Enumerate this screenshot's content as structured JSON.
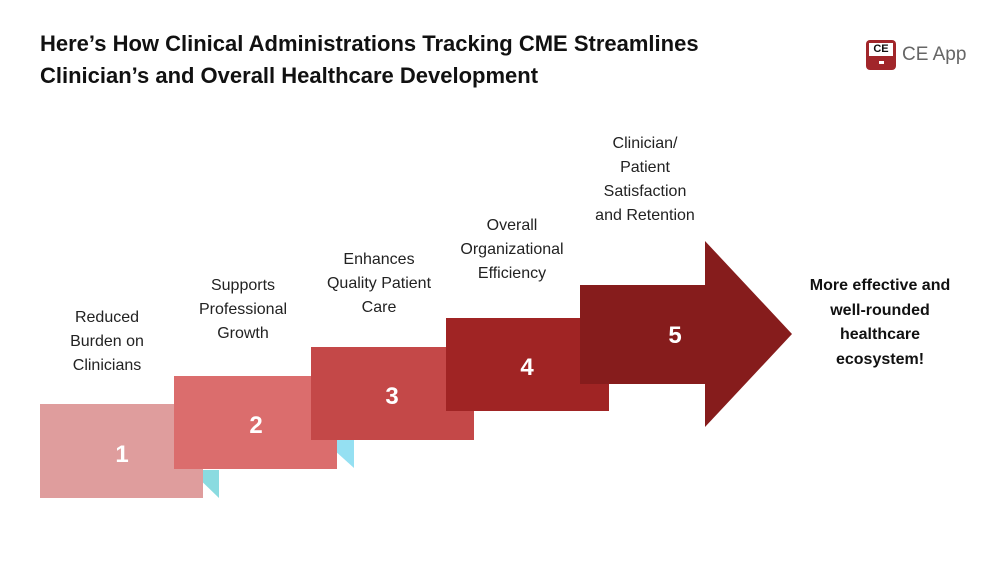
{
  "title": "Here’s How Clinical Administrations Tracking CME Streamlines Clinician’s and Overall Healthcare Development",
  "logo": {
    "badge": "CE",
    "name": "CE App"
  },
  "steps": [
    {
      "number": "1",
      "label": "Reduced Burden on Clinicians",
      "color": "#df9d9d"
    },
    {
      "number": "2",
      "label": "Supports Professional Growth",
      "color": "#db6d6d"
    },
    {
      "number": "3",
      "label": "Enhances Quality Patient Care",
      "color": "#c44848"
    },
    {
      "number": "4",
      "label": "Overall Organizational Efficiency",
      "color": "#a02424"
    },
    {
      "number": "5",
      "label": "Clinician/ Patient Satisfaction and Retention",
      "color": "#861c1c"
    }
  ],
  "outcome": "More effective and well-rounded healthcare ecosystem!"
}
